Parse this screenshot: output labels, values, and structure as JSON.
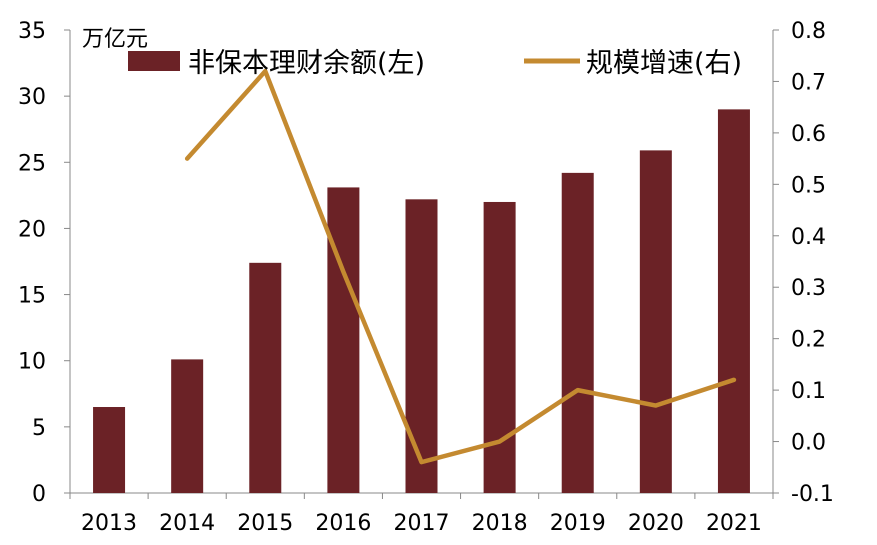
{
  "chart_data": {
    "type": "bar+line",
    "categories": [
      "2013",
      "2014",
      "2015",
      "2016",
      "2017",
      "2018",
      "2019",
      "2020",
      "2021"
    ],
    "series": [
      {
        "name": "非保本理财余额(左)",
        "type": "bar",
        "axis": "left",
        "values": [
          6.5,
          10.1,
          17.4,
          23.1,
          22.2,
          22.0,
          24.2,
          25.9,
          29.0
        ],
        "color": "#6b2226"
      },
      {
        "name": "规模增速(右)",
        "type": "line",
        "axis": "right",
        "values": [
          null,
          0.55,
          0.72,
          0.33,
          -0.04,
          0.0,
          0.1,
          0.07,
          0.12
        ],
        "color": "#c48a30"
      }
    ],
    "left_axis": {
      "unit": "万亿元",
      "ylim": [
        0,
        35
      ],
      "ticks": [
        {
          "value": 0,
          "label": "0"
        },
        {
          "value": 5,
          "label": "5"
        },
        {
          "value": 10,
          "label": "10"
        },
        {
          "value": 15,
          "label": "15"
        },
        {
          "value": 20,
          "label": "20"
        },
        {
          "value": 25,
          "label": "25"
        },
        {
          "value": 30,
          "label": "30"
        },
        {
          "value": 35,
          "label": "35"
        }
      ]
    },
    "right_axis": {
      "ylim": [
        -0.1,
        0.8
      ],
      "ticks": [
        {
          "value": -0.1,
          "label": "-0.1"
        },
        {
          "value": 0.0,
          "label": "0.0"
        },
        {
          "value": 0.1,
          "label": "0.1"
        },
        {
          "value": 0.2,
          "label": "0.2"
        },
        {
          "value": 0.3,
          "label": "0.3"
        },
        {
          "value": 0.4,
          "label": "0.4"
        },
        {
          "value": 0.5,
          "label": "0.5"
        },
        {
          "value": 0.6,
          "label": "0.6"
        },
        {
          "value": 0.7,
          "label": "0.7"
        },
        {
          "value": 0.8,
          "label": "0.8"
        }
      ]
    },
    "grid": false,
    "legend_position": "top"
  }
}
